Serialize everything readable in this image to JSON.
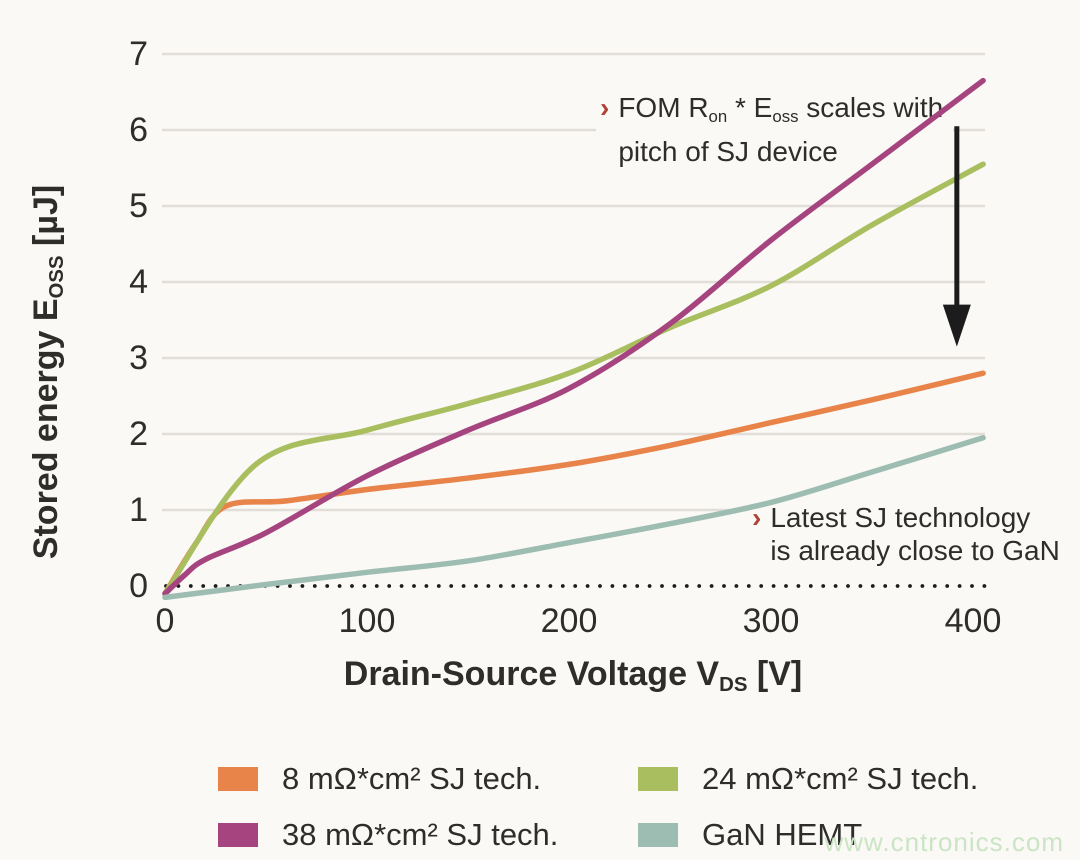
{
  "page": {
    "background": "#FAF9F5",
    "text_color": "#2E2D2B",
    "watermark": "www.cntronics.com",
    "watermark_color": "#CBE4C5"
  },
  "chart_data": {
    "type": "line",
    "title": "",
    "xlabel": {
      "pre": "Drain-Source Voltage V",
      "sub": "DS",
      "post": " [V]"
    },
    "ylabel": {
      "pre": "Stored energy E",
      "sub": "OSS",
      "post": " [µJ]"
    },
    "x_ticks": [
      0,
      100,
      200,
      300,
      400
    ],
    "y_ticks": [
      0,
      1,
      2,
      3,
      4,
      5,
      6,
      7
    ],
    "xlim": [
      0,
      405
    ],
    "ylim": [
      -0.2,
      7.1
    ],
    "grid": "horizontal-only",
    "grid_color": "#E2DED7",
    "zero_line_style": "dotted-black",
    "legend_position": "bottom",
    "series": [
      {
        "name": "8 mΩ*cm² SJ tech.",
        "color": "#E8834A",
        "points": [
          [
            0,
            -0.1
          ],
          [
            15,
            0.55
          ],
          [
            30,
            1.05
          ],
          [
            60,
            1.12
          ],
          [
            100,
            1.27
          ],
          [
            150,
            1.42
          ],
          [
            200,
            1.6
          ],
          [
            250,
            1.85
          ],
          [
            300,
            2.15
          ],
          [
            350,
            2.45
          ],
          [
            405,
            2.8
          ]
        ]
      },
      {
        "name": "24 mΩ*cm² SJ tech.",
        "color": "#A9BE5F",
        "points": [
          [
            0,
            -0.1
          ],
          [
            45,
            1.6
          ],
          [
            100,
            2.05
          ],
          [
            150,
            2.4
          ],
          [
            200,
            2.8
          ],
          [
            250,
            3.4
          ],
          [
            300,
            3.95
          ],
          [
            350,
            4.75
          ],
          [
            405,
            5.55
          ]
        ]
      },
      {
        "name": "38 mΩ*cm² SJ tech.",
        "color": "#A64480",
        "points": [
          [
            0,
            -0.1
          ],
          [
            10,
            0.15
          ],
          [
            20,
            0.35
          ],
          [
            50,
            0.7
          ],
          [
            100,
            1.45
          ],
          [
            150,
            2.05
          ],
          [
            200,
            2.6
          ],
          [
            250,
            3.45
          ],
          [
            300,
            4.55
          ],
          [
            350,
            5.55
          ],
          [
            405,
            6.65
          ]
        ]
      },
      {
        "name": "GaN HEMT",
        "color": "#9EBDB2",
        "points": [
          [
            0,
            -0.15
          ],
          [
            50,
            0.02
          ],
          [
            100,
            0.18
          ],
          [
            150,
            0.33
          ],
          [
            200,
            0.57
          ],
          [
            250,
            0.82
          ],
          [
            300,
            1.1
          ],
          [
            350,
            1.5
          ],
          [
            405,
            1.95
          ]
        ]
      }
    ],
    "annotations": {
      "fom": {
        "bullet": "›",
        "bullet_color": "#AE4436",
        "t1": "FOM R",
        "s1": "on",
        "t2": " * E",
        "s2": "oss",
        "t3": " scales with",
        "line2": "pitch of SJ device"
      },
      "gan": {
        "bullet": "›",
        "bullet_color": "#AE4436",
        "line1": "Latest SJ technology",
        "line2": "is already close to GaN"
      }
    },
    "arrow": {
      "x": 392,
      "y_from": 6.05,
      "y_to": 3.15,
      "direction": "down",
      "color": "#1C1C1C"
    }
  }
}
